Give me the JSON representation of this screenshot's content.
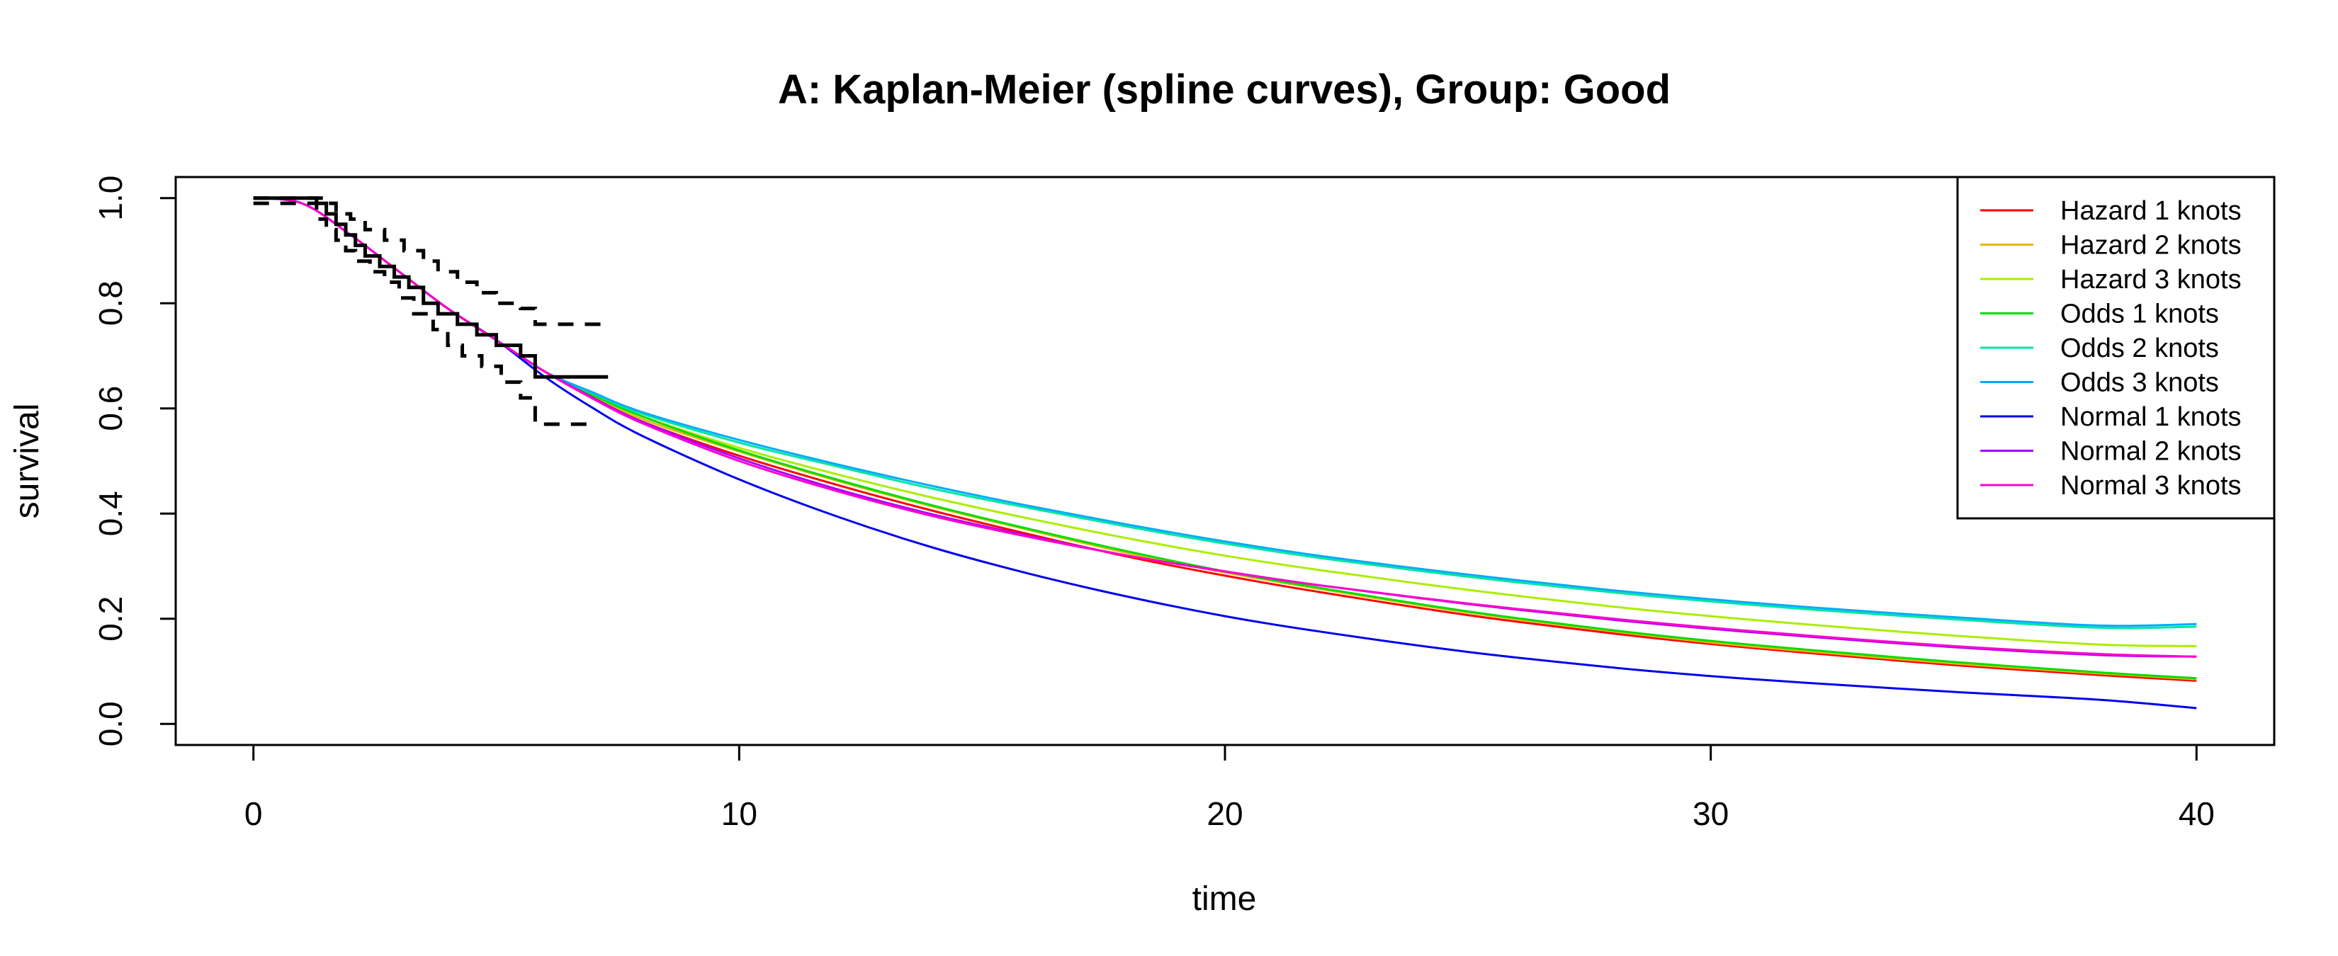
{
  "chart_data": {
    "type": "line",
    "title": "A: Kaplan-Meier (spline curves), Group: Good",
    "xlabel": "time",
    "ylabel": "survival",
    "xlim": [
      -1.6,
      41.6
    ],
    "ylim": [
      -0.04,
      1.04
    ],
    "xticks": [
      0,
      10,
      20,
      30,
      40
    ],
    "xtick_labels": [
      "0",
      "10",
      "20",
      "30",
      "40"
    ],
    "yticks": [
      0.0,
      0.2,
      0.4,
      0.6,
      0.8,
      1.0
    ],
    "ytick_labels": [
      "0.0",
      "0.2",
      "0.4",
      "0.6",
      "0.8",
      "1.0"
    ],
    "grid": false,
    "legend_position": "top-right",
    "kaplan_meier": {
      "color": "#000000",
      "estimate": {
        "x": [
          0,
          1.0,
          1.3,
          1.5,
          1.7,
          1.9,
          2.1,
          2.3,
          2.6,
          2.9,
          3.2,
          3.5,
          3.8,
          4.2,
          4.6,
          5.0,
          5.5,
          5.8,
          6.3,
          7.3
        ],
        "y": [
          1.0,
          1.0,
          0.99,
          0.97,
          0.95,
          0.93,
          0.91,
          0.89,
          0.87,
          0.85,
          0.83,
          0.8,
          0.78,
          0.76,
          0.74,
          0.72,
          0.7,
          0.66,
          0.66,
          0.66
        ]
      },
      "upper": {
        "x": [
          0,
          1.3,
          1.5,
          1.7,
          2.0,
          2.3,
          2.7,
          3.1,
          3.5,
          3.8,
          4.2,
          4.6,
          5.0,
          5.5,
          5.8,
          6.3,
          7.3
        ],
        "y": [
          1.0,
          1.0,
          0.99,
          0.97,
          0.96,
          0.94,
          0.92,
          0.9,
          0.88,
          0.86,
          0.84,
          0.82,
          0.8,
          0.79,
          0.76,
          0.76,
          0.76
        ]
      },
      "lower": {
        "x": [
          0,
          0.6,
          1.3,
          1.5,
          1.7,
          1.9,
          2.1,
          2.4,
          2.7,
          3.0,
          3.3,
          3.7,
          4.0,
          4.3,
          4.7,
          5.1,
          5.5,
          5.8,
          6.3,
          7.0
        ],
        "y": [
          0.99,
          0.99,
          0.96,
          0.94,
          0.92,
          0.9,
          0.88,
          0.86,
          0.84,
          0.81,
          0.78,
          0.75,
          0.72,
          0.7,
          0.68,
          0.65,
          0.62,
          0.57,
          0.57,
          0.57
        ]
      }
    },
    "x": [
      0,
      1,
      2,
      3,
      4,
      5,
      6,
      7,
      8,
      10,
      12,
      14,
      16,
      18,
      20,
      22,
      25,
      28,
      30,
      32,
      35,
      38,
      40
    ],
    "series": [
      {
        "name": "Hazard 1 knots",
        "color": "#ff0000",
        "values": [
          1.0,
          0.99,
          0.93,
          0.86,
          0.79,
          0.73,
          0.67,
          0.62,
          0.575,
          0.51,
          0.455,
          0.405,
          0.36,
          0.318,
          0.282,
          0.25,
          0.207,
          0.172,
          0.152,
          0.135,
          0.112,
          0.093,
          0.082
        ]
      },
      {
        "name": "Hazard 2 knots",
        "color": "#e6b800",
        "values": [
          1.0,
          0.99,
          0.93,
          0.86,
          0.79,
          0.73,
          0.67,
          0.623,
          0.58,
          0.518,
          0.463,
          0.413,
          0.368,
          0.325,
          0.288,
          0.256,
          0.212,
          0.176,
          0.155,
          0.138,
          0.115,
          0.096,
          0.085
        ]
      },
      {
        "name": "Hazard 3 knots",
        "color": "#aaee00",
        "values": [
          1.0,
          0.99,
          0.93,
          0.86,
          0.79,
          0.73,
          0.67,
          0.625,
          0.585,
          0.525,
          0.475,
          0.43,
          0.39,
          0.353,
          0.32,
          0.292,
          0.255,
          0.223,
          0.205,
          0.189,
          0.168,
          0.151,
          0.148
        ]
      },
      {
        "name": "Odds 1 knots",
        "color": "#00dd00",
        "values": [
          1.0,
          0.99,
          0.93,
          0.86,
          0.79,
          0.73,
          0.67,
          0.625,
          0.585,
          0.52,
          0.465,
          0.415,
          0.37,
          0.328,
          0.29,
          0.258,
          0.214,
          0.178,
          0.158,
          0.141,
          0.118,
          0.098,
          0.087
        ]
      },
      {
        "name": "Odds 2 knots",
        "color": "#00e6a0",
        "values": [
          1.0,
          0.99,
          0.93,
          0.86,
          0.79,
          0.73,
          0.67,
          0.628,
          0.59,
          0.535,
          0.49,
          0.447,
          0.41,
          0.375,
          0.343,
          0.315,
          0.28,
          0.25,
          0.233,
          0.218,
          0.199,
          0.183,
          0.185
        ]
      },
      {
        "name": "Odds 3 knots",
        "color": "#00aaff",
        "values": [
          1.0,
          0.99,
          0.93,
          0.86,
          0.79,
          0.73,
          0.67,
          0.63,
          0.593,
          0.54,
          0.494,
          0.452,
          0.414,
          0.379,
          0.347,
          0.319,
          0.284,
          0.254,
          0.237,
          0.222,
          0.203,
          0.187,
          0.19
        ]
      },
      {
        "name": "Normal 1 knots",
        "color": "#0000ee",
        "values": [
          1.0,
          0.99,
          0.93,
          0.86,
          0.79,
          0.73,
          0.66,
          0.6,
          0.548,
          0.465,
          0.395,
          0.335,
          0.285,
          0.242,
          0.205,
          0.175,
          0.137,
          0.107,
          0.091,
          0.078,
          0.061,
          0.046,
          0.03
        ]
      },
      {
        "name": "Normal 2 knots",
        "color": "#aa00ff",
        "values": [
          1.0,
          0.99,
          0.93,
          0.86,
          0.79,
          0.73,
          0.67,
          0.62,
          0.575,
          0.505,
          0.447,
          0.398,
          0.357,
          0.32,
          0.29,
          0.263,
          0.228,
          0.198,
          0.181,
          0.166,
          0.146,
          0.131,
          0.128
        ]
      },
      {
        "name": "Normal 3 knots",
        "color": "#ff00cc",
        "values": [
          1.0,
          0.99,
          0.93,
          0.86,
          0.79,
          0.73,
          0.67,
          0.618,
          0.572,
          0.5,
          0.443,
          0.395,
          0.355,
          0.32,
          0.29,
          0.263,
          0.229,
          0.2,
          0.183,
          0.168,
          0.148,
          0.133,
          0.128
        ]
      }
    ]
  }
}
